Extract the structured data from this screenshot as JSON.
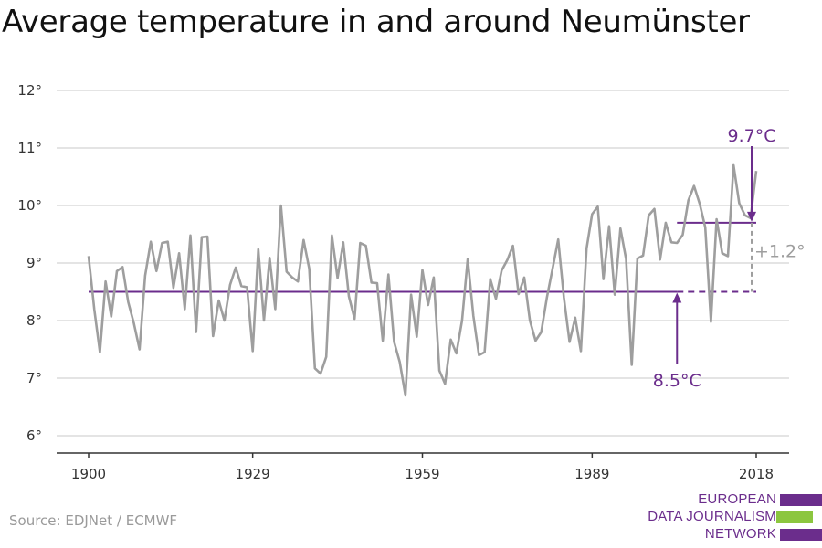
{
  "title": "Average temperature in and around Neumünster",
  "source": "Source: EDJNet / ECMWF",
  "logo": {
    "lines": [
      "EUROPEAN",
      "DATA JOURNALISM",
      "NETWORK"
    ],
    "colors": [
      "#6b2d8c",
      "#8cc63f",
      "#6b2d8c"
    ]
  },
  "colors": {
    "series": "#9e9e9e",
    "reference": "#6b2d8c",
    "delta": "#9e9e9e",
    "grid": "#dcdcdc"
  },
  "chart_data": {
    "type": "line",
    "title": "Average temperature in and around Neumünster",
    "xlabel": "",
    "ylabel": "",
    "xlim": [
      1900,
      2018
    ],
    "ylim": [
      6,
      12
    ],
    "x_ticks": [
      1900,
      1929,
      1959,
      1989,
      2018
    ],
    "x_tick_labels": [
      "1900",
      "1929",
      "1959",
      "1989",
      "2018"
    ],
    "y_ticks": [
      6,
      7,
      8,
      9,
      10,
      11,
      12
    ],
    "y_tick_labels": [
      "6°",
      "7°",
      "8°",
      "9°",
      "10°",
      "11°",
      "12°"
    ],
    "grid": true,
    "series": [
      {
        "x_start": 1900,
        "values": [
          9.12,
          8.2,
          7.45,
          8.68,
          8.07,
          8.86,
          8.93,
          8.32,
          7.95,
          7.5,
          8.78,
          9.37,
          8.86,
          9.35,
          9.37,
          8.57,
          9.17,
          8.2,
          9.48,
          7.8,
          9.45,
          9.46,
          7.73,
          8.35,
          8.0,
          8.62,
          8.92,
          8.6,
          8.58,
          7.47,
          9.24,
          8.0,
          9.09,
          8.2,
          10.0,
          8.85,
          8.75,
          8.68,
          9.4,
          8.9,
          7.17,
          7.08,
          7.37,
          9.48,
          8.74,
          9.36,
          8.42,
          8.03,
          9.35,
          9.3,
          8.66,
          8.65,
          7.65,
          8.8,
          7.63,
          7.28,
          6.7,
          8.45,
          7.72,
          8.88,
          8.27,
          8.75,
          7.13,
          6.9,
          7.67,
          7.43,
          8.0,
          9.07,
          8.08,
          7.4,
          7.45,
          8.72,
          8.38,
          8.87,
          9.05,
          9.3,
          8.46,
          8.75,
          8.0,
          7.65,
          7.8,
          8.4,
          8.9,
          9.41,
          8.4,
          7.63,
          8.05,
          7.47,
          9.25,
          9.85,
          9.98,
          8.72,
          9.64,
          8.45,
          9.6,
          9.07,
          7.23,
          9.08,
          9.13,
          9.83,
          9.94,
          9.06,
          9.7,
          9.36,
          9.35,
          9.49,
          10.09,
          10.34,
          10.03,
          9.62,
          7.98,
          9.76,
          9.17,
          9.12,
          10.7,
          10.04,
          9.83,
          9.78,
          10.6
        ]
      }
    ],
    "reference_lines": [
      {
        "label": "8.5°C",
        "value": 8.5,
        "x_start": 1900,
        "x_end": 2004,
        "dashed_to": 2018
      },
      {
        "label": "9.7°C",
        "value": 9.7,
        "x_start": 2004,
        "x_end": 2018
      }
    ],
    "annotations": [
      {
        "text": "9.7°C",
        "x": 2018,
        "y": 9.7,
        "position": "above"
      },
      {
        "text": "8.5°C",
        "x": 2004,
        "y": 8.5,
        "position": "below"
      },
      {
        "text": "+1.2°",
        "x": 2018,
        "y": 9.1,
        "position": "right"
      }
    ]
  }
}
